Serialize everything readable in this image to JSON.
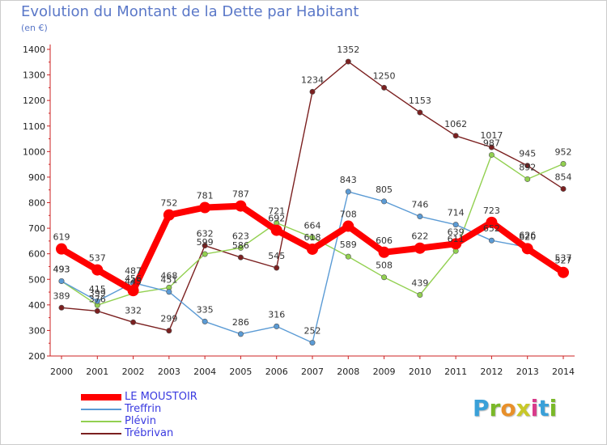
{
  "title": "Evolution du Montant de la Dette par Habitant",
  "subtitle": "(en €)",
  "logo": {
    "text": "Proxiti",
    "letter_colors": [
      "#3aa0d8",
      "#7ab828",
      "#e8902a",
      "#c8c828",
      "#d83a8a",
      "#3aa0d8",
      "#7ab828"
    ]
  },
  "chart_data": {
    "type": "line",
    "title": "Evolution du Montant de la Dette par Habitant",
    "ylabel": "(en €)",
    "xlabel": "",
    "x": [
      "2000",
      "2001",
      "2002",
      "2003",
      "2004",
      "2005",
      "2006",
      "2007",
      "2008",
      "2009",
      "2010",
      "2011",
      "2012",
      "2013",
      "2014"
    ],
    "ylim": [
      200,
      1400
    ],
    "yticks": [
      "200",
      "300",
      "400",
      "500",
      "600",
      "700",
      "800",
      "900",
      "1000",
      "1100",
      "1200",
      "1300",
      "1400"
    ],
    "grid": false,
    "legend_position": "bottom-left",
    "series": [
      {
        "name": "LE MOUSTOIR",
        "color": "#ff0000",
        "values": [
          619,
          537,
          456,
          752,
          781,
          787,
          692,
          618,
          708,
          606,
          622,
          639,
          723,
          620,
          527
        ],
        "labels": [
          "619",
          "537",
          "456",
          "752",
          "781",
          "787",
          "692",
          "618",
          "708",
          "606",
          "622",
          "639",
          "723",
          "620",
          "527"
        ]
      },
      {
        "name": "Treffrin",
        "color": "#5b9bd5",
        "values": [
          493,
          415,
          487,
          451,
          335,
          286,
          316,
          252,
          843,
          805,
          746,
          714,
          652,
          626,
          537
        ],
        "labels": [
          "493",
          "415",
          "487",
          "451",
          "335",
          "286",
          "316",
          "252",
          "843",
          "805",
          "746",
          "714",
          "652",
          "626",
          "537"
        ]
      },
      {
        "name": "Plévin",
        "color": "#92d050",
        "values": [
          493,
          399,
          445,
          468,
          599,
          623,
          721,
          664,
          589,
          508,
          439,
          611,
          987,
          892,
          952
        ],
        "labels": [
          "493",
          "399",
          "445",
          "468",
          "599",
          "623",
          "721",
          "664",
          "589",
          "508",
          "439",
          "611",
          "987",
          "892",
          "952"
        ]
      },
      {
        "name": "Trébrivan",
        "color": "#7b2020",
        "values": [
          389,
          376,
          332,
          299,
          632,
          586,
          545,
          1234,
          1352,
          1250,
          1153,
          1062,
          1017,
          945,
          854
        ],
        "labels": [
          "389",
          "376",
          "332",
          "299",
          "632",
          "586",
          "545",
          "1234",
          "1352",
          "1250",
          "1153",
          "1062",
          "1017",
          "945",
          "854"
        ]
      }
    ]
  },
  "legend": [
    {
      "name": "LE MOUSTOIR",
      "color": "#ff0000",
      "text_color": "#3a3ae0"
    },
    {
      "name": "Treffrin",
      "color": "#5b9bd5",
      "text_color": "#3a3ae0"
    },
    {
      "name": "Plévin",
      "color": "#92d050",
      "text_color": "#3a3ae0"
    },
    {
      "name": "Trébrivan",
      "color": "#7b2020",
      "text_color": "#3a3ae0"
    }
  ]
}
